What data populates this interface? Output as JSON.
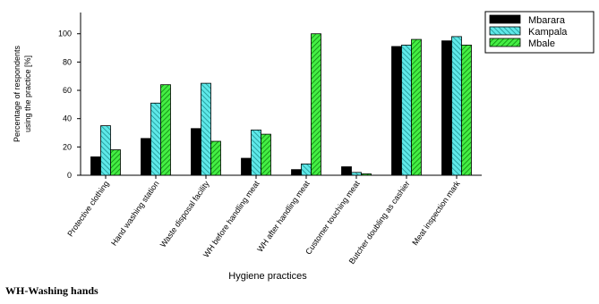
{
  "chart_data": {
    "type": "bar",
    "categories": [
      "Protective clothing",
      "Hand washing station",
      "Waste disposal facility",
      "WH before handling meat",
      "WH after handling meat",
      "Customer touching meat",
      "Butcher doubling as cashier",
      "Meat inspection mark"
    ],
    "series": [
      {
        "name": "Mbarara",
        "values": [
          13,
          26,
          33,
          12,
          4,
          6,
          91,
          95
        ]
      },
      {
        "name": "Kampala",
        "values": [
          35,
          51,
          65,
          32,
          8,
          2,
          92,
          98
        ]
      },
      {
        "name": "Mbale",
        "values": [
          18,
          64,
          24,
          29,
          100,
          1,
          96,
          92
        ]
      }
    ],
    "xlabel": "Hygiene practices",
    "ylabel_lines": [
      "Percentage of respondents",
      "using the practice [%]"
    ],
    "ylim": [
      0,
      115
    ],
    "yticks": [
      0,
      20,
      40,
      60,
      80,
      100
    ],
    "grid": false,
    "legend_position": "top-right",
    "series_colors": [
      "#000000",
      "#33d6d6",
      "#22cc22"
    ],
    "series_patterns": [
      "solid",
      "hatch",
      "hatch"
    ]
  },
  "footnote": "WH-Washing hands"
}
